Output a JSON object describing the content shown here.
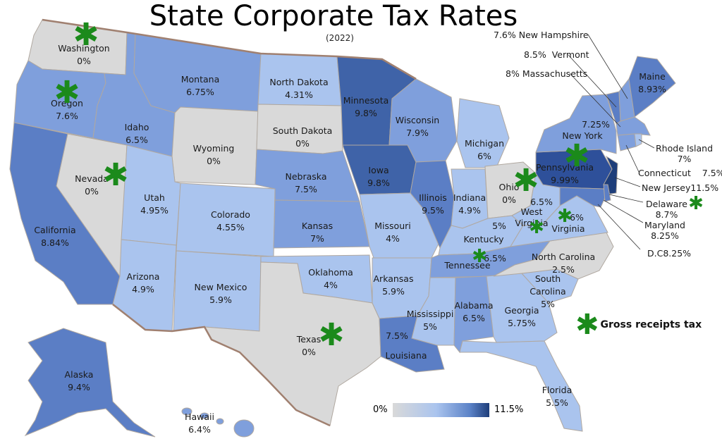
{
  "title": "State Corporate Tax Rates",
  "subtitle": "(2022)",
  "colors": {
    "zero": "#d9d9d9",
    "low": "#aac4ee",
    "mid": "#7f9fdc",
    "high": "#5b7ec5",
    "top": "#1e3e7a",
    "star": "#1b8a1b",
    "border": "#a08070"
  },
  "states": [
    {
      "id": "washington",
      "name": "Washington",
      "rate": "0%",
      "gross_receipts_tax": true
    },
    {
      "id": "oregon",
      "name": "Oregon",
      "rate": "7.6%",
      "gross_receipts_tax": true
    },
    {
      "id": "california",
      "name": "California",
      "rate": "8.84%",
      "gross_receipts_tax": false
    },
    {
      "id": "nevada",
      "name": "Nevada",
      "rate": "0%",
      "gross_receipts_tax": true
    },
    {
      "id": "idaho",
      "name": "Idaho",
      "rate": "6.5%",
      "gross_receipts_tax": false
    },
    {
      "id": "montana",
      "name": "Montana",
      "rate": "6.75%",
      "gross_receipts_tax": false
    },
    {
      "id": "wyoming",
      "name": "Wyoming",
      "rate": "0%",
      "gross_receipts_tax": false
    },
    {
      "id": "utah",
      "name": "Utah",
      "rate": "4.95%",
      "gross_receipts_tax": false
    },
    {
      "id": "arizona",
      "name": "Arizona",
      "rate": "4.9%",
      "gross_receipts_tax": false
    },
    {
      "id": "colorado",
      "name": "Colorado",
      "rate": "4.55%",
      "gross_receipts_tax": false
    },
    {
      "id": "new-mexico",
      "name": "New Mexico",
      "rate": "5.9%",
      "gross_receipts_tax": false
    },
    {
      "id": "north-dakota",
      "name": "North Dakota",
      "rate": "4.31%",
      "gross_receipts_tax": false
    },
    {
      "id": "south-dakota",
      "name": "South Dakota",
      "rate": "0%",
      "gross_receipts_tax": false
    },
    {
      "id": "nebraska",
      "name": "Nebraska",
      "rate": "7.5%",
      "gross_receipts_tax": false
    },
    {
      "id": "kansas",
      "name": "Kansas",
      "rate": "7%",
      "gross_receipts_tax": false
    },
    {
      "id": "oklahoma",
      "name": "Oklahoma",
      "rate": "4%",
      "gross_receipts_tax": false
    },
    {
      "id": "texas",
      "name": "Texas",
      "rate": "0%",
      "gross_receipts_tax": true
    },
    {
      "id": "minnesota",
      "name": "Minnesota",
      "rate": "9.8%",
      "gross_receipts_tax": false
    },
    {
      "id": "iowa",
      "name": "Iowa",
      "rate": "9.8%",
      "gross_receipts_tax": false
    },
    {
      "id": "missouri",
      "name": "Missouri",
      "rate": "4%",
      "gross_receipts_tax": false
    },
    {
      "id": "arkansas",
      "name": "Arkansas",
      "rate": "5.9%",
      "gross_receipts_tax": false
    },
    {
      "id": "louisiana",
      "name": "Louisiana",
      "rate": "7.5%",
      "gross_receipts_tax": false
    },
    {
      "id": "wisconsin",
      "name": "Wisconsin",
      "rate": "7.9%",
      "gross_receipts_tax": false
    },
    {
      "id": "illinois",
      "name": "Illinois",
      "rate": "9.5%",
      "gross_receipts_tax": false
    },
    {
      "id": "michigan",
      "name": "Michigan",
      "rate": "6%",
      "gross_receipts_tax": false
    },
    {
      "id": "indiana",
      "name": "Indiana",
      "rate": "4.9%",
      "gross_receipts_tax": false
    },
    {
      "id": "ohio",
      "name": "Ohio",
      "rate": "0%",
      "gross_receipts_tax": true
    },
    {
      "id": "kentucky",
      "name": "Kentucky",
      "rate": "5%",
      "gross_receipts_tax": false
    },
    {
      "id": "tennessee",
      "name": "Tennessee",
      "rate": "6.5%",
      "gross_receipts_tax": true
    },
    {
      "id": "mississippi",
      "name": "Mississippi",
      "rate": "5%",
      "gross_receipts_tax": false
    },
    {
      "id": "alabama",
      "name": "Alabama",
      "rate": "6.5%",
      "gross_receipts_tax": false
    },
    {
      "id": "georgia",
      "name": "Georgia",
      "rate": "5.75%",
      "gross_receipts_tax": false
    },
    {
      "id": "florida",
      "name": "Florida",
      "rate": "5.5%",
      "gross_receipts_tax": false
    },
    {
      "id": "south-carolina",
      "name": "South Carolina",
      "rate": "5%",
      "gross_receipts_tax": false
    },
    {
      "id": "north-carolina",
      "name": "North Carolina",
      "rate": "2.5%",
      "gross_receipts_tax": false
    },
    {
      "id": "virginia",
      "name": "Virginia",
      "rate": "6%",
      "gross_receipts_tax": false
    },
    {
      "id": "west-virginia",
      "name": "West Virginia",
      "rate": "6.5%",
      "gross_receipts_tax": true
    },
    {
      "id": "pennsylvania",
      "name": "Pennsylvania",
      "rate": "9.99%",
      "gross_receipts_tax": true
    },
    {
      "id": "new-york",
      "name": "New York",
      "rate": "7.25%",
      "gross_receipts_tax": false
    },
    {
      "id": "maine",
      "name": "Maine",
      "rate": "8.93%",
      "gross_receipts_tax": false
    },
    {
      "id": "new-hampshire",
      "name": "New Hampshire",
      "rate": "7.6%",
      "gross_receipts_tax": false
    },
    {
      "id": "vermont",
      "name": "Vermont",
      "rate": "8.5%",
      "gross_receipts_tax": false
    },
    {
      "id": "massachusetts",
      "name": "Massachusetts",
      "rate": "8%",
      "gross_receipts_tax": false
    },
    {
      "id": "rhode-island",
      "name": "Rhode Island",
      "rate": "7%",
      "gross_receipts_tax": false
    },
    {
      "id": "connecticut",
      "name": "Connecticut",
      "rate": "7.5%",
      "gross_receipts_tax": false
    },
    {
      "id": "new-jersey",
      "name": "New Jersey",
      "rate": "11.5%",
      "gross_receipts_tax": false
    },
    {
      "id": "delaware",
      "name": "Delaware",
      "rate": "8.7%",
      "gross_receipts_tax": true
    },
    {
      "id": "maryland",
      "name": "Maryland",
      "rate": "8.25%",
      "gross_receipts_tax": false
    },
    {
      "id": "dc",
      "name": "D.C",
      "rate": "8.25%",
      "gross_receipts_tax": false
    },
    {
      "id": "alaska",
      "name": "Alaska",
      "rate": "9.4%",
      "gross_receipts_tax": false
    },
    {
      "id": "hawaii",
      "name": "Hawaii",
      "rate": "6.4%",
      "gross_receipts_tax": false
    }
  ],
  "legend": {
    "gross_receipts_label": "Gross receipts tax",
    "scale_min": "0%",
    "scale_max": "11.5%"
  }
}
